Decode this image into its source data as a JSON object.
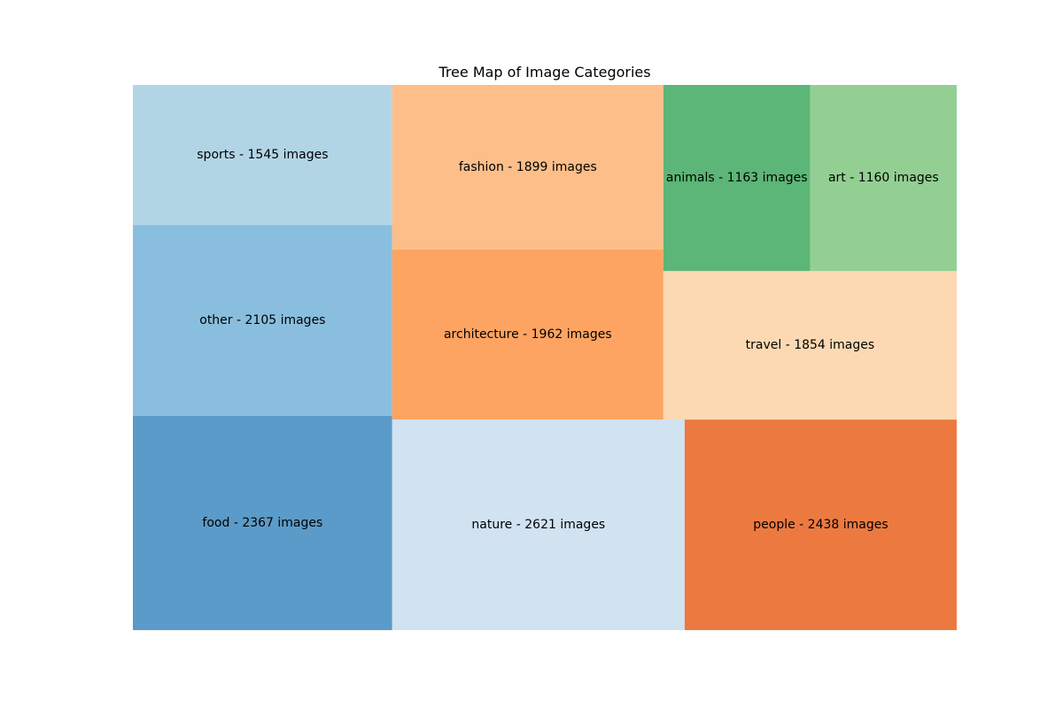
{
  "chart_data": {
    "type": "treemap",
    "title": "Tree Map of Image Categories",
    "items": [
      {
        "category": "food",
        "count": 2367,
        "label": "food - 2367 images",
        "color": "#5b9bc9"
      },
      {
        "category": "other",
        "count": 2105,
        "label": "other - 2105 images",
        "color": "#89bede"
      },
      {
        "category": "sports",
        "count": 1545,
        "label": "sports - 1545 images",
        "color": "#b2d5e6"
      },
      {
        "category": "nature",
        "count": 2621,
        "label": "nature - 2621 images",
        "color": "#d1e2f1"
      },
      {
        "category": "architecture",
        "count": 1962,
        "label": "architecture - 1962 images",
        "color": "#fda462"
      },
      {
        "category": "fashion",
        "count": 1899,
        "label": "fashion - 1899 images",
        "color": "#fdbe8a"
      },
      {
        "category": "people",
        "count": 2438,
        "label": "people - 2438 images",
        "color": "#ec7a40"
      },
      {
        "category": "travel",
        "count": 1854,
        "label": "travel - 1854 images",
        "color": "#fcd9b3"
      },
      {
        "category": "animals",
        "count": 1163,
        "label": "animals - 1163 images",
        "color": "#5cb677"
      },
      {
        "category": "art",
        "count": 1160,
        "label": "art - 1160 images",
        "color": "#93cf93"
      }
    ]
  }
}
